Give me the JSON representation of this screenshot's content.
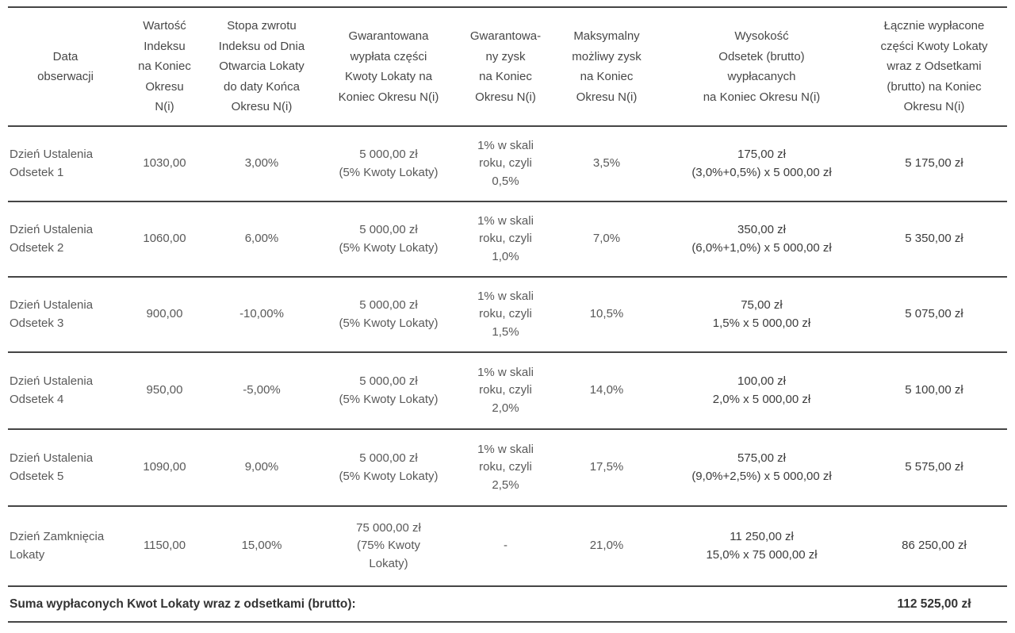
{
  "table": {
    "columns": [
      {
        "label": "Data\nobserwacji"
      },
      {
        "label": "Wartość\nIndeksu\nna Koniec\nOkresu\nN(i)"
      },
      {
        "label": "Stopa zwrotu\nIndeksu od Dnia\nOtwarcia Lokaty\ndo daty Końca\nOkresu N(i)"
      },
      {
        "label": "Gwarantowana\nwypłata części\nKwoty Lokaty na\nKoniec Okresu N(i)"
      },
      {
        "label": "Gwarantowa-\nny zysk\nna Koniec\nOkresu N(i)"
      },
      {
        "label": "Maksymalny\nmożliwy zysk\nna Koniec\nOkresu N(i)"
      },
      {
        "label": "Wysokość\nOdsetek (brutto)\nwypłacanych\nna Koniec Okresu N(i)"
      },
      {
        "label": "Łącznie wypłacone\nczęści Kwoty Lokaty\nwraz  z Odsetkami\n(brutto) na Koniec\nOkresu N(i)"
      }
    ],
    "rows": [
      {
        "cells": [
          "Dzień Ustalenia\nOdsetek 1",
          "1030,00",
          "3,00%",
          "5 000,00 zł\n(5% Kwoty Lokaty)",
          "1% w skali\nroku, czyli\n0,5%",
          "3,5%",
          "175,00 zł\n(3,0%+0,5%) x 5 000,00 zł",
          "5 175,00 zł"
        ]
      },
      {
        "cells": [
          "Dzień Ustalenia\nOdsetek 2",
          "1060,00",
          "6,00%",
          "5 000,00 zł\n(5% Kwoty Lokaty)",
          "1% w skali\nroku, czyli\n1,0%",
          "7,0%",
          "350,00 zł\n(6,0%+1,0%)  x 5 000,00 zł",
          "5 350,00 zł"
        ]
      },
      {
        "cells": [
          "Dzień Ustalenia\nOdsetek 3",
          "900,00",
          "-10,00%",
          "5 000,00 zł\n(5% Kwoty Lokaty)",
          "1% w skali\nroku, czyli\n1,5%",
          "10,5%",
          "75,00 zł\n1,5% x 5 000,00 zł",
          "5 075,00 zł"
        ]
      },
      {
        "cells": [
          "Dzień Ustalenia\nOdsetek 4",
          "950,00",
          "-5,00%",
          "5 000,00 zł\n(5% Kwoty Lokaty)",
          "1% w skali\nroku, czyli\n2,0%",
          "14,0%",
          "100,00 zł\n2,0% x 5 000,00 zł",
          "5 100,00 zł"
        ]
      },
      {
        "cells": [
          "Dzień Ustalenia\nOdsetek 5",
          "1090,00",
          "9,00%",
          "5 000,00 zł\n(5% Kwoty Lokaty)",
          "1% w skali\nroku, czyli\n2,5%",
          "17,5%",
          "575,00 zł\n(9,0%+2,5%) x 5 000,00 zł",
          "5 575,00 zł"
        ]
      },
      {
        "cells": [
          "Dzień Zamknięcia\nLokaty",
          "1150,00",
          "15,00%",
          "75 000,00 zł\n(75% Kwoty\nLokaty)",
          "-",
          "21,0%",
          "11 250,00 zł\n15,0% x 75 000,00 zł",
          "86 250,00 zł"
        ]
      }
    ],
    "footer": {
      "label": "Suma wypłaconych Kwot Lokaty wraz z odsetkami (brutto):",
      "value": "112 525,00 zł"
    },
    "colors": {
      "rule": "#454545",
      "body_text": "#595959",
      "emphasis_text": "#3c3c3c",
      "total_text": "#333333"
    }
  }
}
